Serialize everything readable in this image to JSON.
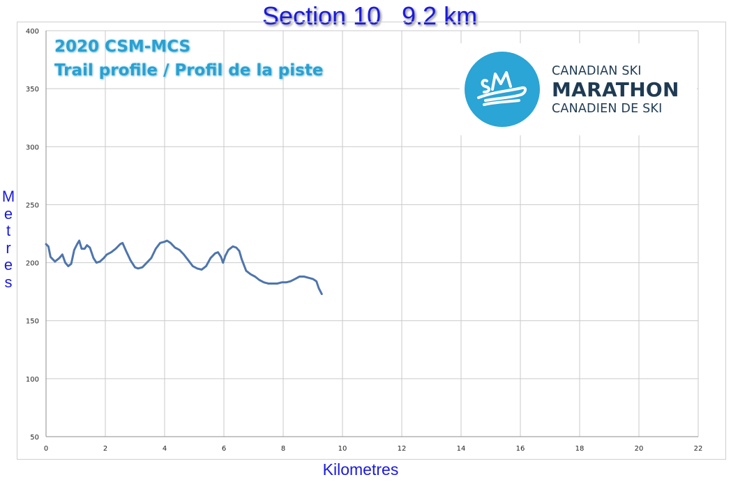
{
  "chart_data": {
    "type": "line",
    "title": "Section 10   9.2 km",
    "subtitle_lines": [
      "2020 CSM-MCS",
      "Trail profile / Profil de la piste"
    ],
    "xlabel": "Kilometres",
    "ylabel": "Metres",
    "xlim": [
      0,
      22
    ],
    "ylim": [
      50,
      400
    ],
    "x_ticks": [
      0,
      2,
      4,
      6,
      8,
      10,
      12,
      14,
      16,
      18,
      20,
      22
    ],
    "y_ticks": [
      50,
      100,
      150,
      200,
      250,
      300,
      350,
      400
    ],
    "grid": true,
    "line_color": "#4e75ad",
    "series": [
      {
        "x": [
          0,
          0.08,
          0.15,
          0.3,
          0.45,
          0.55,
          0.65,
          0.75,
          0.85,
          0.95,
          1.05,
          1.12,
          1.2,
          1.3,
          1.38,
          1.48,
          1.6,
          1.7,
          1.82,
          1.95,
          2.05,
          2.2,
          2.35,
          2.5,
          2.58,
          2.7,
          2.85,
          3.0,
          3.1,
          3.25,
          3.4,
          3.55,
          3.7,
          3.85,
          4.0,
          4.08,
          4.2,
          4.35,
          4.5,
          4.65,
          4.8,
          4.95,
          5.1,
          5.25,
          5.4,
          5.55,
          5.7,
          5.8,
          5.9,
          5.97,
          6.05,
          6.15,
          6.3,
          6.42,
          6.52,
          6.6,
          6.75,
          6.9,
          7.05,
          7.2,
          7.35,
          7.5,
          7.65,
          7.8,
          7.95,
          8.1,
          8.25,
          8.4,
          8.55,
          8.7,
          8.85,
          9.0,
          9.12,
          9.2,
          9.3
        ],
        "y": [
          216,
          214,
          205,
          201,
          204,
          207,
          200,
          197,
          199,
          211,
          216,
          219,
          212,
          212,
          215,
          213,
          204,
          200,
          201,
          204,
          207,
          209,
          212,
          216,
          217,
          210,
          202,
          196,
          195,
          196,
          200,
          204,
          212,
          217,
          218,
          219,
          217,
          213,
          211,
          207,
          202,
          197,
          195,
          194,
          197,
          204,
          208,
          209,
          205,
          200,
          206,
          211,
          214,
          213,
          210,
          203,
          193,
          190,
          188,
          185,
          183,
          182,
          182,
          182,
          183,
          183,
          184,
          186,
          188,
          188,
          187,
          186,
          184,
          178,
          173
        ]
      }
    ]
  },
  "logo": {
    "line1": "CANADIAN SKI",
    "line2": "MARATHON",
    "line3": "CANADIEN DE SKI",
    "circle_color": "#2ba4d6",
    "text_color": "#1f3b53"
  }
}
